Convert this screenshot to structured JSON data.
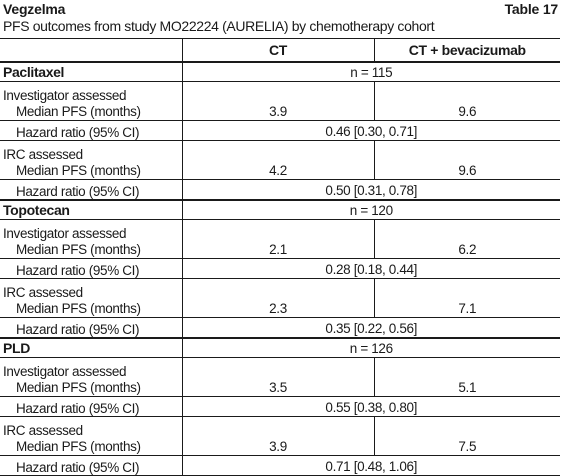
{
  "header": {
    "title": "Vegzelma",
    "table_label": "Table 17",
    "subtitle": "PFS outcomes from study MO22224 (AURELIA) by chemotherapy cohort"
  },
  "columns": {
    "ct": "CT",
    "ct_bev": "CT + bevacizumab"
  },
  "cohorts": [
    {
      "name": "Paclitaxel",
      "n": "n = 115",
      "groups": [
        {
          "assessor": "Investigator assessed",
          "median_label": "Median PFS (months)",
          "ct": "3.9",
          "ct_bev": "9.6",
          "hr_label": "Hazard ratio (95% CI)",
          "hr": "0.46 [0.30, 0.71]"
        },
        {
          "assessor": "IRC assessed",
          "median_label": "Median PFS (months)",
          "ct": "4.2",
          "ct_bev": "9.6",
          "hr_label": "Hazard ratio (95% CI)",
          "hr": "0.50 [0.31, 0.78]"
        }
      ]
    },
    {
      "name": "Topotecan",
      "n": "n = 120",
      "groups": [
        {
          "assessor": "Investigator assessed",
          "median_label": "Median PFS (months)",
          "ct": "2.1",
          "ct_bev": "6.2",
          "hr_label": "Hazard ratio (95% CI)",
          "hr": "0.28 [0.18, 0.44]"
        },
        {
          "assessor": "IRC assessed",
          "median_label": "Median PFS (months)",
          "ct": "2.3",
          "ct_bev": "7.1",
          "hr_label": "Hazard ratio (95% CI)",
          "hr": "0.35 [0.22, 0.56]"
        }
      ]
    },
    {
      "name": "PLD",
      "n": "n = 126",
      "groups": [
        {
          "assessor": "Investigator assessed",
          "median_label": "Median PFS (months)",
          "ct": "3.5",
          "ct_bev": "5.1",
          "hr_label": "Hazard ratio (95% CI)",
          "hr": "0.55 [0.38, 0.80]"
        },
        {
          "assessor": "IRC assessed",
          "median_label": "Median PFS (months)",
          "ct": "3.9",
          "ct_bev": "7.5",
          "hr_label": "Hazard ratio (95% CI)",
          "hr": "0.71 [0.48, 1.06]"
        }
      ]
    }
  ]
}
